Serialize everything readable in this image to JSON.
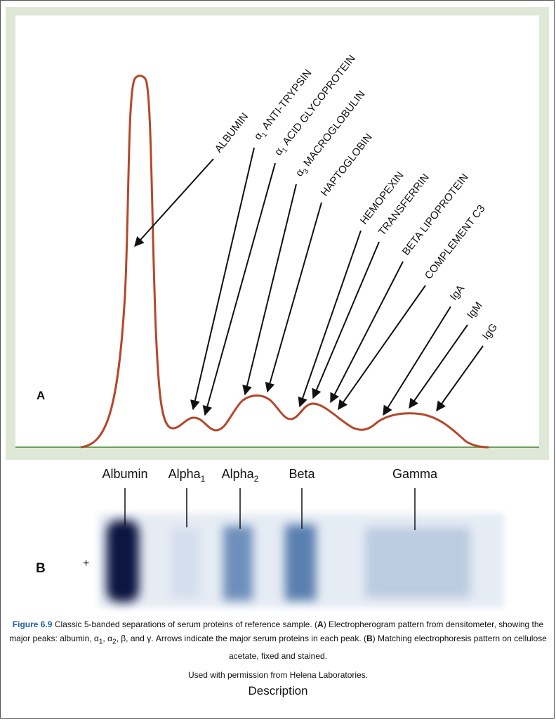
{
  "panel_a": {
    "label": "A",
    "peak_labels": [
      {
        "id": "albumin",
        "prefix": "",
        "sub": "",
        "text": "ALBUMIN"
      },
      {
        "id": "a1-antitrypsin",
        "prefix": "α",
        "sub": "1",
        "text": " ANTI-TRYPSIN"
      },
      {
        "id": "a1-acid-glycoprotein",
        "prefix": "α",
        "sub": "1",
        "text": " ACID GLYCOPROTEIN"
      },
      {
        "id": "a3-macroglobulin",
        "prefix": "α",
        "sub": "3",
        "text": " MACROGLOBULIN"
      },
      {
        "id": "haptoglobin",
        "prefix": "",
        "sub": "",
        "text": "HAPTOGLOBIN"
      },
      {
        "id": "hemopexin",
        "prefix": "",
        "sub": "",
        "text": "HEMOPEXIN"
      },
      {
        "id": "transferrin",
        "prefix": "",
        "sub": "",
        "text": "TRANSFERRIN"
      },
      {
        "id": "beta-lipoprotein",
        "prefix": "",
        "sub": "",
        "text": "BETA LIPOPROTEIN"
      },
      {
        "id": "complement-c3",
        "prefix": "",
        "sub": "",
        "text": "COMPLEMENT C3"
      },
      {
        "id": "iga",
        "prefix": "",
        "sub": "",
        "text": "IgA"
      },
      {
        "id": "igm",
        "prefix": "",
        "sub": "",
        "text": "IgM"
      },
      {
        "id": "igg",
        "prefix": "",
        "sub": "",
        "text": "IgG"
      }
    ]
  },
  "panel_b": {
    "label": "B",
    "plus_sign": "+",
    "bands": [
      {
        "id": "albumin",
        "name": "Albumin",
        "sub": ""
      },
      {
        "id": "alpha1",
        "name": "Alpha",
        "sub": "1"
      },
      {
        "id": "alpha2",
        "name": "Alpha",
        "sub": "2"
      },
      {
        "id": "beta",
        "name": "Beta",
        "sub": ""
      },
      {
        "id": "gamma",
        "name": "Gamma",
        "sub": ""
      }
    ]
  },
  "caption": {
    "figure_label": "Figure 6.9",
    "text_1": " Classic 5-banded separations of serum proteins of reference sample. (",
    "bold_a": "A",
    "text_2": ") Electropherogram pattern from densitometer, showing the major peaks: albumin, α",
    "sub_1": "1",
    "text_3": ", α",
    "sub_2": "2",
    "text_4": ", β, and γ. Arrows indicate the major serum proteins in each peak. (",
    "bold_b": "B",
    "text_5": ") Matching electrophoresis pattern on cellulose acetate, fixed and stained."
  },
  "permission": "Used with permission from Helena Laboratories.",
  "description": "Description",
  "colors": {
    "curve": "#b5472a",
    "baseline": "#6aa05a",
    "panel_border": "#dfe8d6",
    "figure_label": "#1f5fa8",
    "band_dark": "#0a1440",
    "band_mid": "#5a7fb0",
    "strip_bg": "#e6ecf4"
  }
}
